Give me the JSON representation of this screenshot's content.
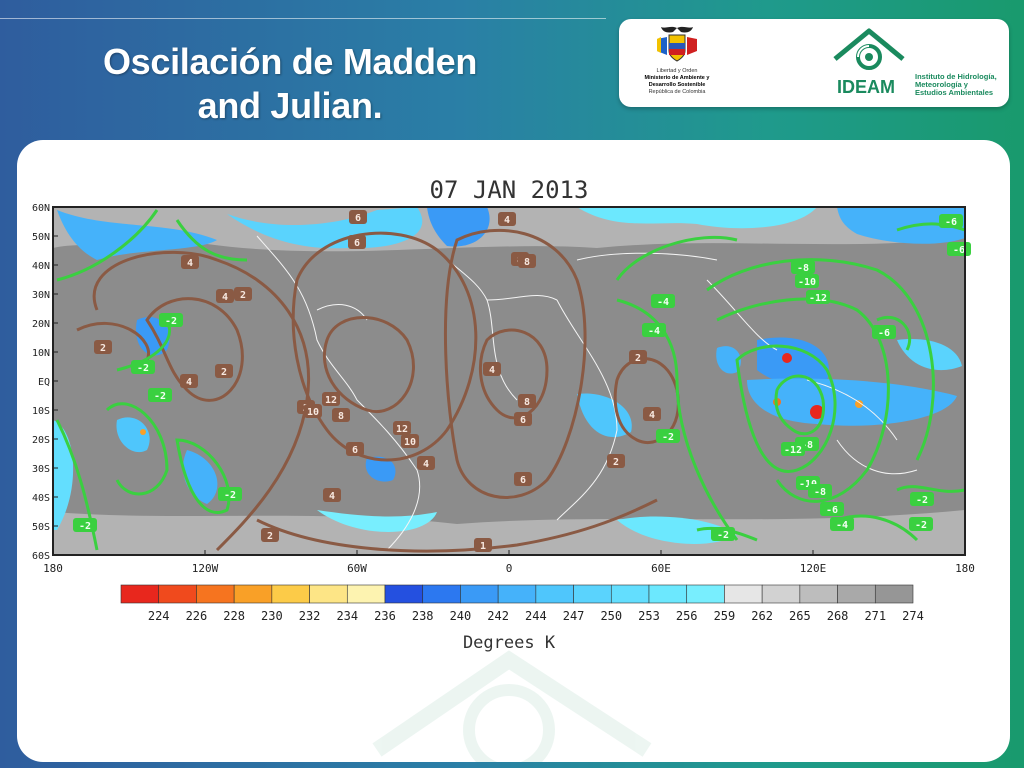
{
  "slide": {
    "title_line1": "Oscilación de Madden",
    "title_line2": "and Julian."
  },
  "logos": {
    "ministry_lines": [
      "Libertad y Orden",
      "Ministerio de Ambiente y",
      "Desarrollo Sostenible",
      "República de Colombia"
    ],
    "ideam_name": "IDEAM",
    "ideam_full_lines": [
      "Instituto de Hidrología,",
      "Meteorología y",
      "Estudios Ambientales"
    ]
  },
  "map": {
    "date_label": "07 JAN 2013",
    "lat_labels": [
      "60N",
      "50N",
      "40N",
      "30N",
      "20N",
      "10N",
      "EQ",
      "10S",
      "20S",
      "30S",
      "40S",
      "50S",
      "60S"
    ],
    "lon_labels": [
      "180",
      "120W",
      "60W",
      "0",
      "60E",
      "120E",
      "180"
    ],
    "colorbar_values": [
      "224",
      "226",
      "228",
      "230",
      "232",
      "234",
      "236",
      "238",
      "240",
      "242",
      "244",
      "247",
      "250",
      "253",
      "256",
      "259",
      "262",
      "265",
      "268",
      "271",
      "274"
    ],
    "colorbar_colors": [
      "#e8271d",
      "#f04a1d",
      "#f6741f",
      "#f9a027",
      "#fccb48",
      "#fde586",
      "#fdf3b0",
      "#2450e0",
      "#2c78f0",
      "#3a9af6",
      "#45b2fa",
      "#4fc6fc",
      "#5ad3fd",
      "#63defe",
      "#6ce8fe",
      "#78eefe",
      "#e6e6e6",
      "#d2d2d2",
      "#bdbdbd",
      "#a9a9a9",
      "#969696"
    ],
    "colorbar_title": "Degrees K",
    "brown_contour_labels": [
      "4",
      "4",
      "6",
      "4",
      "4",
      "6",
      "8",
      "2",
      "2",
      "2",
      "12",
      "10",
      "8",
      "12",
      "10",
      "6",
      "4",
      "8",
      "6",
      "8",
      "4",
      "6",
      "4",
      "2",
      "2",
      "2",
      "1",
      "4",
      "2"
    ],
    "green_contour_labels": [
      "-2",
      "-2",
      "-2",
      "-2",
      "-2",
      "-4",
      "-4",
      "-8",
      "-10",
      "-12",
      "-2",
      "-2",
      "-6",
      "-8",
      "-6",
      "-12",
      "-10",
      "-8",
      "-6",
      "-4",
      "-2",
      "-2",
      "-6"
    ],
    "colors": {
      "land_ocean_gray": "#8c8c8c",
      "cold_cloud": "#3fb8f8",
      "brown_contour": "#8a5a44",
      "green_contour": "#3ad040"
    }
  }
}
